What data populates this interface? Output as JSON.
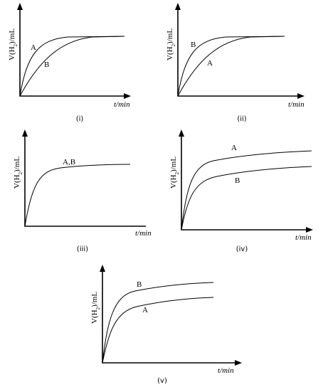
{
  "panels": [
    {
      "caption": "(i)",
      "x_label": "t/min",
      "y_label": {
        "prefix": "V(H",
        "subscript": "2",
        "suffix": ")/mL"
      },
      "curve_labels": [
        "A",
        "B"
      ]
    },
    {
      "caption": "(ii)",
      "x_label": "t/min",
      "y_label": {
        "prefix": "V(H",
        "subscript": "2",
        "suffix": ")/mL"
      },
      "curve_labels": [
        "B",
        "A"
      ]
    },
    {
      "caption": "(iii)",
      "x_label": "t/min",
      "y_label": {
        "prefix": "V(H",
        "subscript": "2",
        "suffix": ")/mL"
      },
      "curve_labels": [
        "A,B"
      ]
    },
    {
      "caption": "(iv)",
      "x_label": "t/min",
      "y_label": {
        "prefix": "V(H",
        "subscript": "2",
        "suffix": ")/mL"
      },
      "curve_labels": [
        "A",
        "B"
      ]
    },
    {
      "caption": "(v)",
      "x_label": "t/min",
      "y_label": {
        "prefix": "V(H",
        "subscript": "2",
        "suffix": ")/mL"
      },
      "curve_labels": [
        "B",
        "A"
      ]
    }
  ]
}
